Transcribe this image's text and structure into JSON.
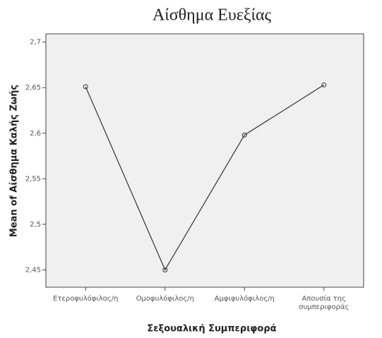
{
  "chart_data": {
    "type": "line",
    "title": "Αίσθημα Ευεξίας",
    "x_label": "Σεξουαλική Συμπεριφορά",
    "y_label": "Mean of Αίσθημα Καλής Ζωής",
    "categories": [
      "Ετεροφυλόφιλος/η",
      "Ομοφυλόφιλος/η",
      "Αμφιφυλόφιλος/η",
      "Απουσία της\nσυμπεριφοράς"
    ],
    "values": [
      2.651,
      2.45,
      2.598,
      2.653
    ],
    "color": "#333333",
    "ylim": [
      2.431,
      2.709
    ],
    "yticks": [
      {
        "value": 2.45,
        "label": "2,45"
      },
      {
        "value": 2.5,
        "label": "2,5"
      },
      {
        "value": 2.55,
        "label": "2,55"
      },
      {
        "value": 2.6,
        "label": "2,6"
      },
      {
        "value": 2.65,
        "label": "2,65"
      },
      {
        "value": 2.7,
        "label": "2,7"
      }
    ]
  }
}
